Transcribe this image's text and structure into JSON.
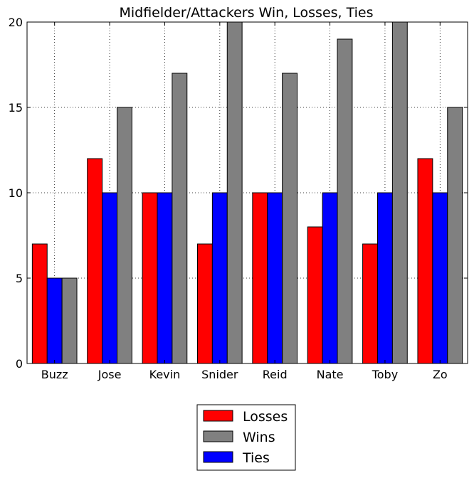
{
  "chart_data": {
    "type": "bar",
    "title": "Midfielder/Attackers Win, Losses, Ties",
    "xlabel": "",
    "ylabel": "",
    "categories": [
      "Buzz",
      "Jose",
      "Kevin",
      "Snider",
      "Reid",
      "Nate",
      "Toby",
      "Zo"
    ],
    "series": [
      {
        "name": "Losses",
        "color": "#ff0000",
        "values": [
          7,
          12,
          10,
          7,
          10,
          8,
          7,
          12
        ]
      },
      {
        "name": "Ties",
        "color": "#0000ff",
        "values": [
          5,
          10,
          10,
          10,
          10,
          10,
          10,
          10
        ]
      },
      {
        "name": "Wins",
        "color": "#808080",
        "values": [
          5,
          15,
          17,
          20,
          17,
          19,
          20,
          15
        ]
      }
    ],
    "ylim": [
      0,
      20
    ],
    "yticks": [
      "0",
      "5",
      "10",
      "15",
      "20"
    ],
    "grid": true,
    "grid_style": "dotted",
    "legend": {
      "placement": "bottom-center",
      "entries": [
        {
          "label": "Losses",
          "color": "#ff0000"
        },
        {
          "label": "Wins",
          "color": "#808080"
        },
        {
          "label": "Ties",
          "color": "#0000ff"
        }
      ]
    }
  }
}
